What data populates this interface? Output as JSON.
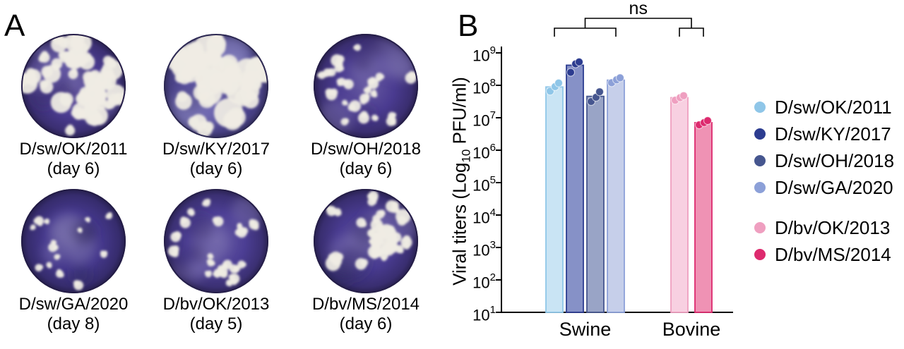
{
  "panel_a": {
    "label": "A",
    "plates": [
      {
        "name": "D/sw/OK/2011",
        "day": "(day 6)",
        "base_color": "#4b3c92",
        "plaques": {
          "count": 40,
          "min_r": 6,
          "max_r": 15
        },
        "cluster": "none"
      },
      {
        "name": "D/sw/KY/2017",
        "day": "(day 6)",
        "base_color": "#5a51a5",
        "plaques": {
          "count": 26,
          "min_r": 11,
          "max_r": 21
        },
        "cluster": "none"
      },
      {
        "name": "D/sw/OH/2018",
        "day": "(day 6)",
        "base_color": "#4a3b90",
        "plaques": {
          "count": 22,
          "min_r": 4,
          "max_r": 9
        },
        "cluster": "none"
      },
      {
        "name": "D/sw/GA/2020",
        "day": "(day 8)",
        "base_color": "#45388c",
        "plaques": {
          "count": 14,
          "min_r": 3,
          "max_r": 7
        },
        "cluster": "none"
      },
      {
        "name": "D/bv/OK/2013",
        "day": "(day 5)",
        "base_color": "#4c3e94",
        "plaques": {
          "count": 20,
          "min_r": 4,
          "max_r": 8
        },
        "cluster": "none"
      },
      {
        "name": "D/bv/MS/2014",
        "day": "(day 6)",
        "base_color": "#493b90",
        "plaques": {
          "count": 32,
          "min_r": 5,
          "max_r": 11
        },
        "cluster": "upper-right"
      }
    ]
  },
  "panel_b": {
    "label": "B"
  },
  "chart_data": {
    "type": "bar",
    "title": "",
    "yscale": "log10",
    "ylabel": "Viral titers (Log10 PFU/ml)",
    "ylabel_parts": {
      "prefix": "Viral titers (Log",
      "sub": "10",
      "suffix": " PFU/ml)"
    },
    "ylim": [
      10,
      1000000000
    ],
    "ytick_exponents": [
      1,
      2,
      3,
      4,
      5,
      6,
      7,
      8,
      9
    ],
    "grid": false,
    "legend_position": "right",
    "significance": {
      "label": "ns",
      "between": [
        "Swine",
        "Bovine"
      ]
    },
    "groups": [
      {
        "label": "Swine",
        "bars": [
          {
            "name": "D/sw/OK/2011",
            "color": "#8fc6e8",
            "fill": "#c9e4f4",
            "bar_log10": 7.95,
            "value_pfu_ml": 89000000.0,
            "points_log10": [
              7.82,
              7.96,
              8.07
            ]
          },
          {
            "name": "D/sw/KY/2017",
            "color": "#2c3c90",
            "fill": "#8691c7",
            "bar_log10": 8.62,
            "value_pfu_ml": 420000000.0,
            "points_log10": [
              8.4,
              8.66,
              8.72
            ]
          },
          {
            "name": "D/sw/OH/2018",
            "color": "#46568f",
            "fill": "#99a4c6",
            "bar_log10": 7.66,
            "value_pfu_ml": 46000000.0,
            "points_log10": [
              7.5,
              7.63,
              7.8
            ]
          },
          {
            "name": "D/sw/GA/2020",
            "color": "#8ca0d8",
            "fill": "#c6cfea",
            "bar_log10": 8.16,
            "value_pfu_ml": 140000000.0,
            "points_log10": [
              8.08,
              8.17,
              8.23
            ]
          }
        ]
      },
      {
        "label": "Bovine",
        "bars": [
          {
            "name": "D/bv/OK/2013",
            "color": "#ef9fc0",
            "fill": "#f8d0e1",
            "bar_log10": 7.62,
            "value_pfu_ml": 42000000.0,
            "points_log10": [
              7.54,
              7.62,
              7.68
            ]
          },
          {
            "name": "D/bv/MS/2014",
            "color": "#dd2a6e",
            "fill": "#ef92b4",
            "bar_log10": 6.85,
            "value_pfu_ml": 7100000.0,
            "points_log10": [
              6.78,
              6.85,
              6.91
            ]
          }
        ]
      }
    ]
  }
}
